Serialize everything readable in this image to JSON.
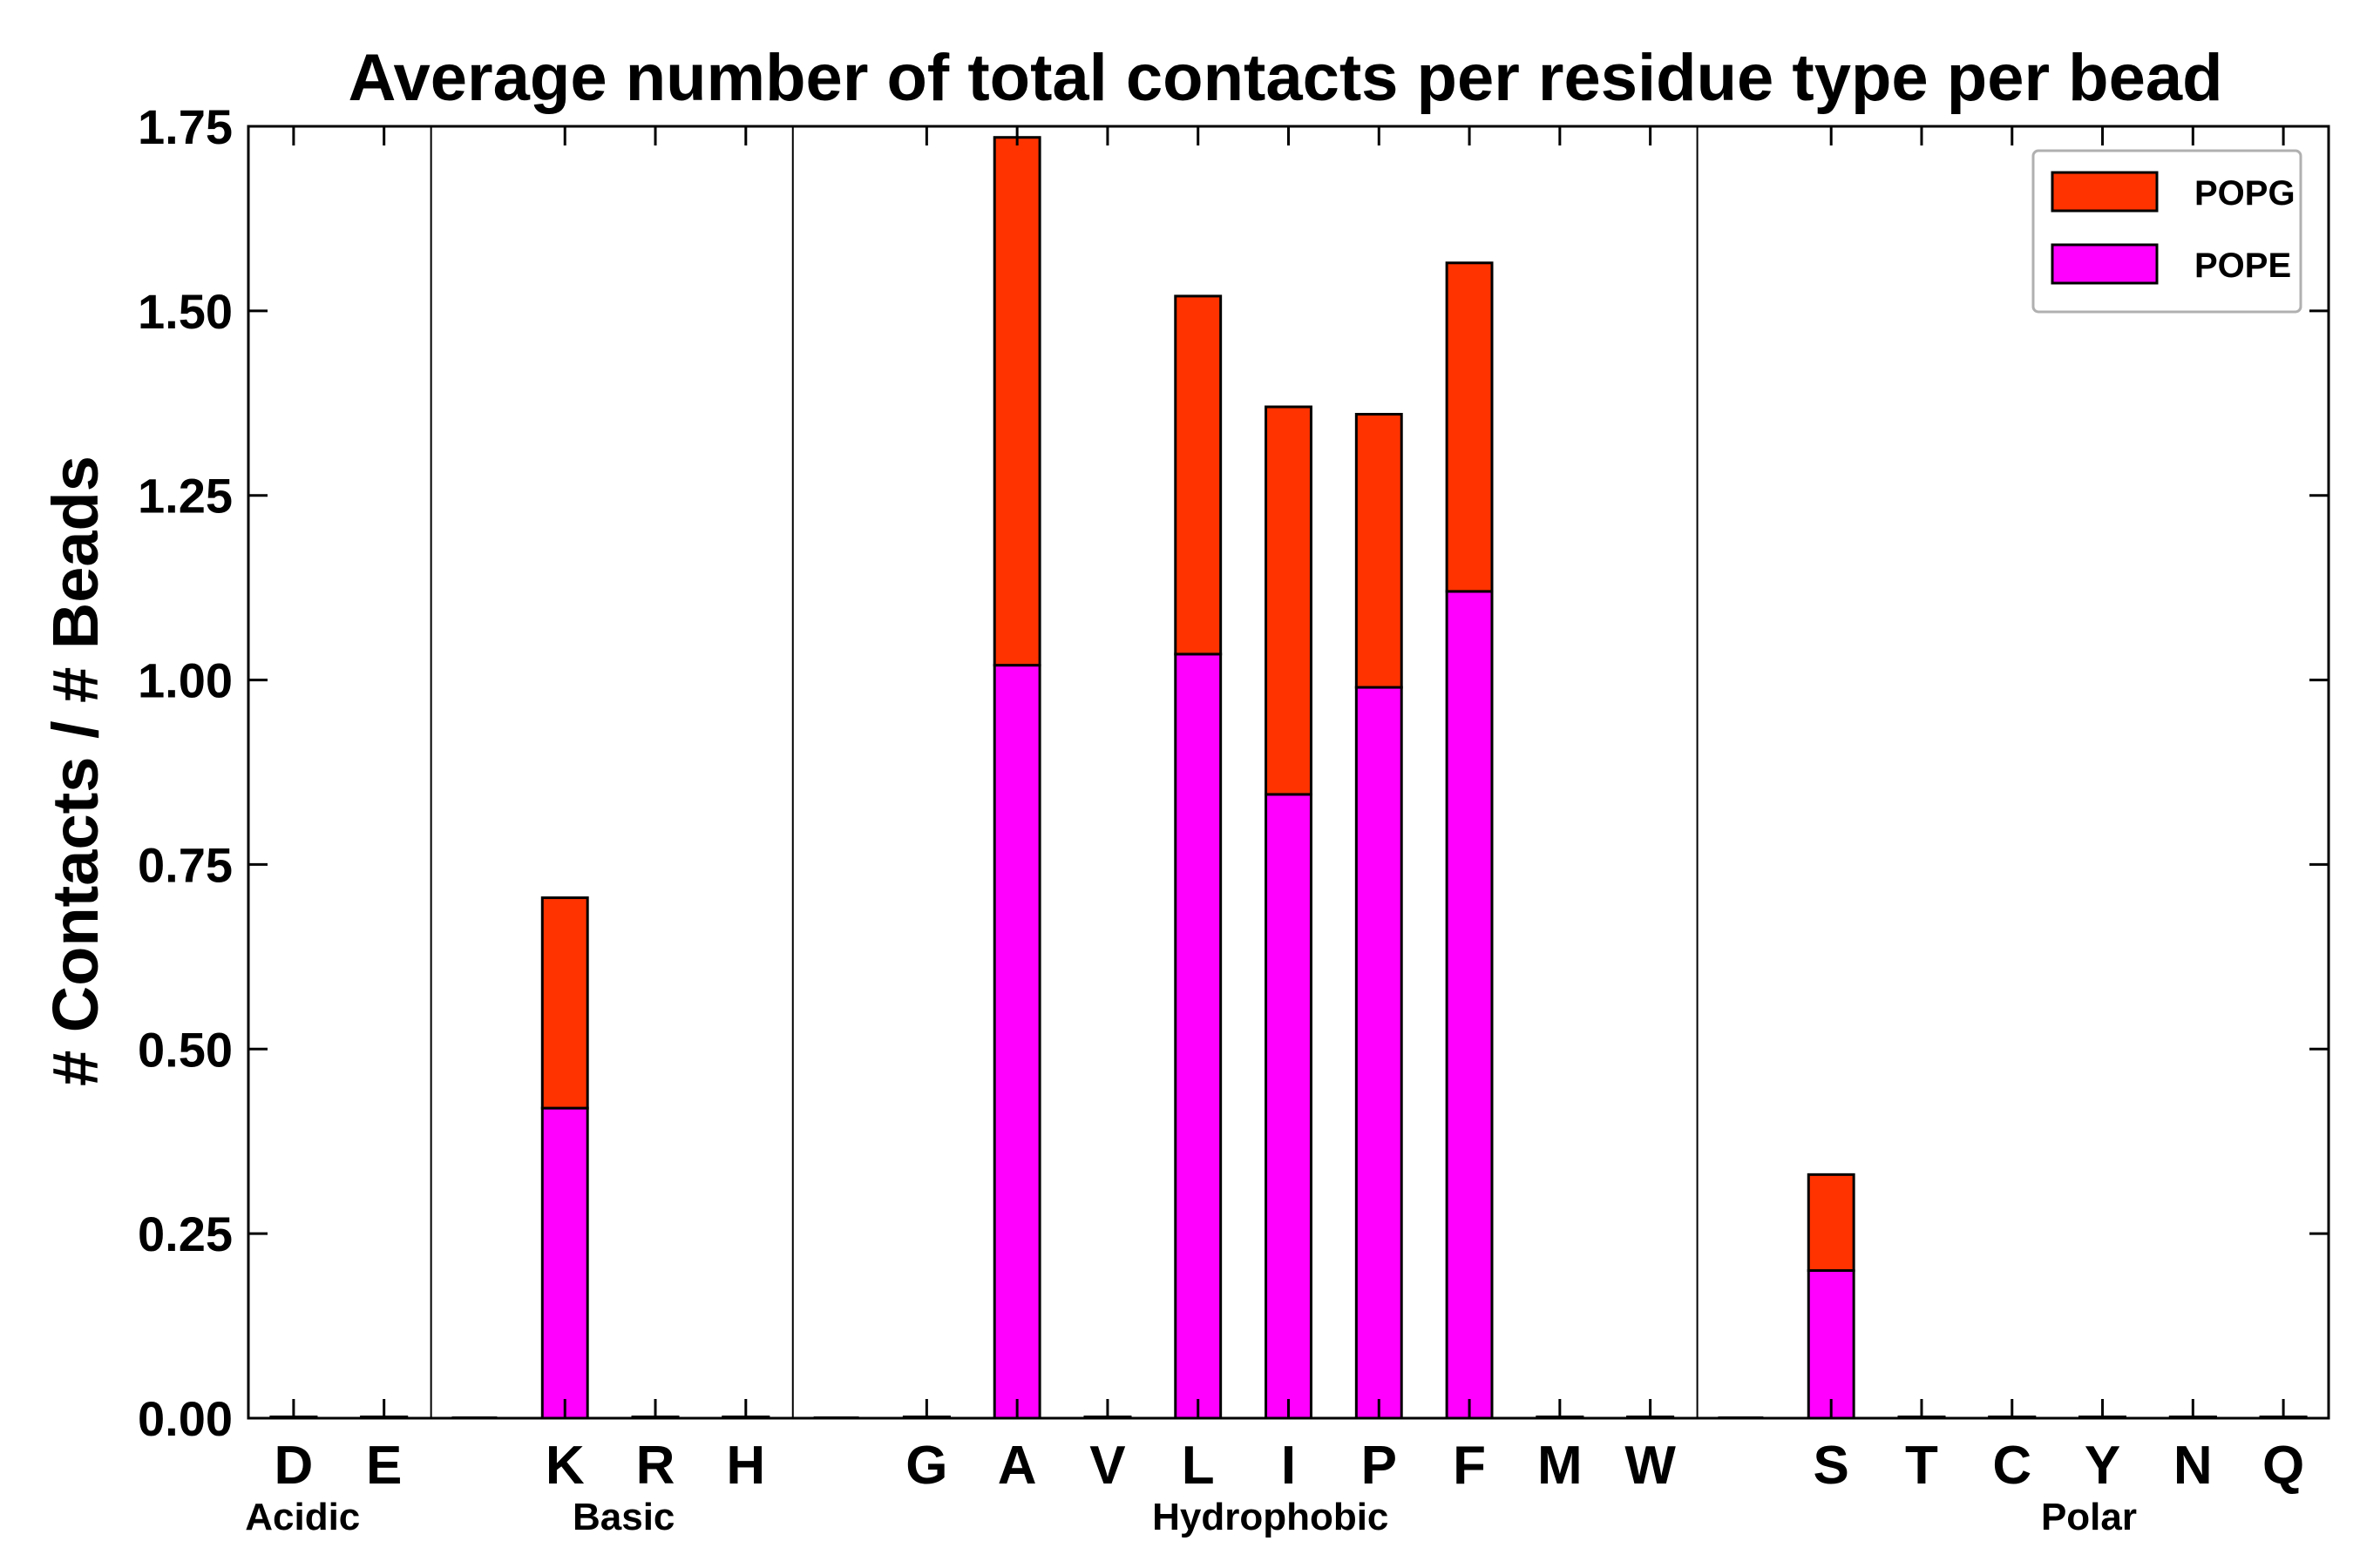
{
  "chart_data": {
    "type": "bar",
    "stacked": true,
    "title": "Average number of total contacts per residue type per bead",
    "xlabel": "",
    "ylabel": "# Contacts / # Beads",
    "ylim": [
      0,
      1.75
    ],
    "yticks": [
      "0.00",
      "0.25",
      "0.50",
      "0.75",
      "1.00",
      "1.25",
      "1.50",
      "1.75"
    ],
    "x_slots": 23,
    "categories": [
      "D",
      "E",
      "K",
      "R",
      "H",
      "G",
      "A",
      "V",
      "L",
      "I",
      "P",
      "F",
      "M",
      "W",
      "S",
      "T",
      "C",
      "Y",
      "N",
      "Q"
    ],
    "category_slots": [
      0,
      1,
      3,
      4,
      5,
      7,
      8,
      9,
      10,
      11,
      12,
      13,
      14,
      15,
      17,
      18,
      19,
      20,
      21,
      22
    ],
    "separator_slots": [
      2,
      6,
      16
    ],
    "groups": [
      {
        "label": "Acidic",
        "center_slot": 0.1
      },
      {
        "label": "Basic",
        "center_slot": 3.65
      },
      {
        "label": "Hydrophobic",
        "center_slot": 10.8
      },
      {
        "label": "Polar",
        "center_slot": 19.85
      }
    ],
    "series": [
      {
        "name": "POPE",
        "color": "#ff00ff",
        "values": [
          0,
          0,
          0.42,
          0,
          0,
          0,
          1.02,
          0,
          1.035,
          0.845,
          0.99,
          1.12,
          0,
          0,
          0.2,
          0,
          0,
          0,
          0,
          0
        ]
      },
      {
        "name": "POPG",
        "color": "#ff3300",
        "values": [
          0,
          0,
          0.285,
          0,
          0,
          0,
          0.715,
          0,
          0.485,
          0.525,
          0.37,
          0.445,
          0,
          0,
          0.13,
          0,
          0,
          0,
          0,
          0
        ]
      }
    ],
    "legend": {
      "position": "top-right",
      "entries": [
        "POPG",
        "POPE"
      ]
    },
    "grid": false
  }
}
